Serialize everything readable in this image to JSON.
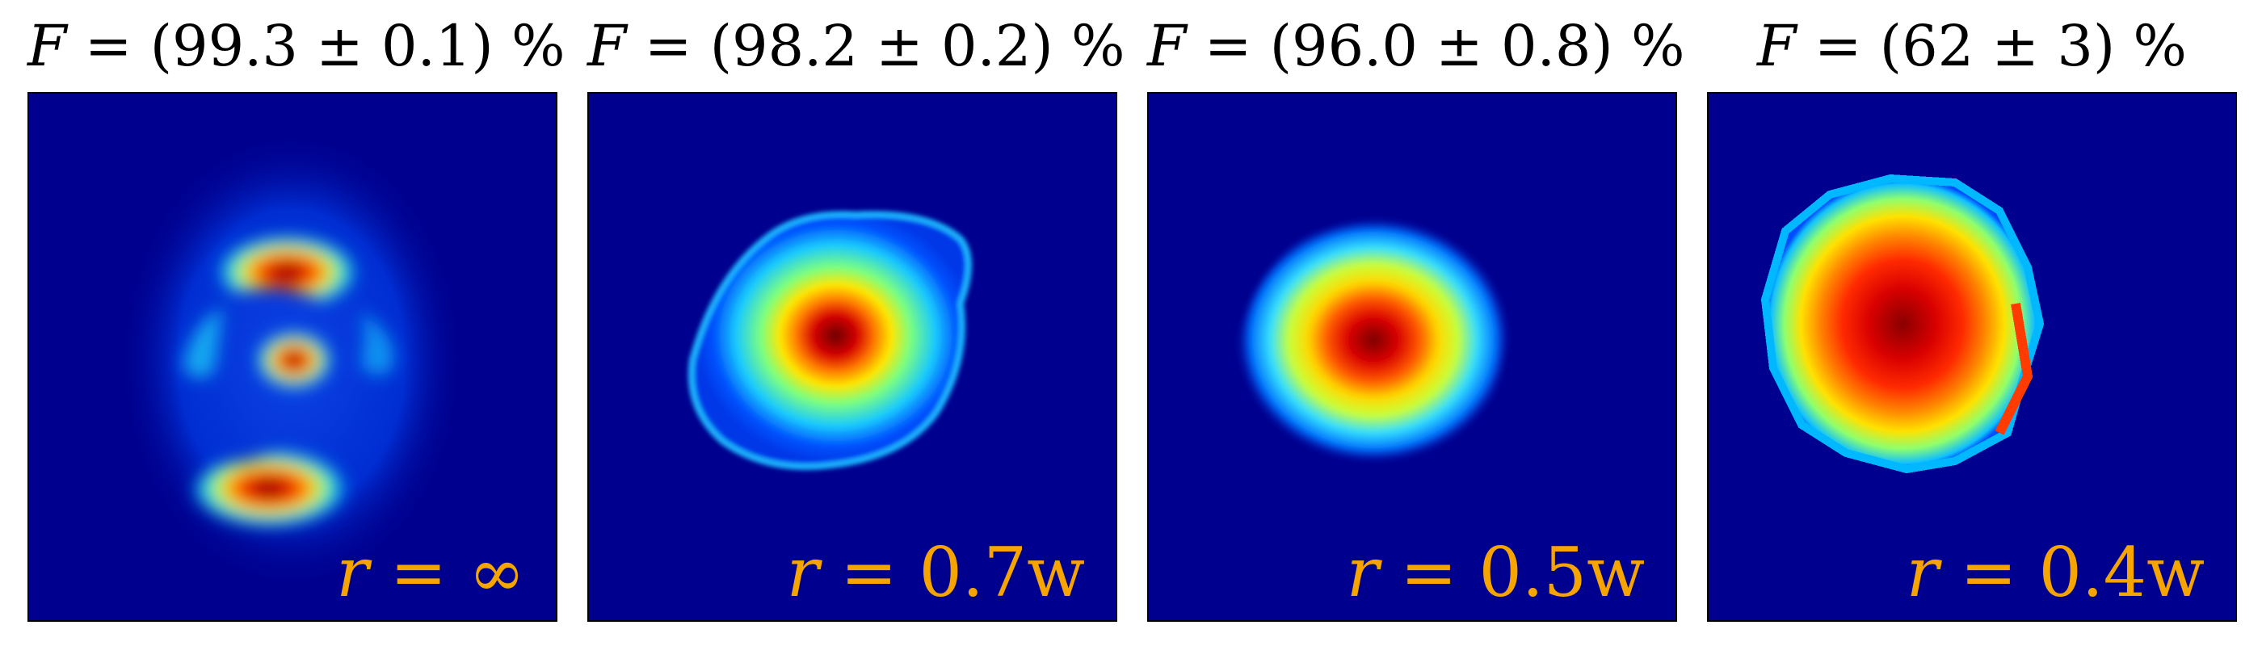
{
  "panels": [
    {
      "title_prefix": "F",
      "title_value": " = (99.3 ± 0.1) %",
      "label_prefix": "r",
      "label_value": " = ∞"
    },
    {
      "title_prefix": "F",
      "title_value": " = (98.2 ± 0.2) %",
      "label_prefix": "r",
      "label_value": " = 0.7w"
    },
    {
      "title_prefix": "F",
      "title_value": " = (96.0 ± 0.8) %",
      "label_prefix": "r",
      "label_value": " = 0.5w"
    },
    {
      "title_prefix": "F",
      "title_value": " = (62 ± 3) %",
      "label_prefix": "r",
      "label_value": " = 0.4w"
    }
  ],
  "colors": {
    "background": "#00008e",
    "label": "#f5a400",
    "title": "#000000"
  }
}
